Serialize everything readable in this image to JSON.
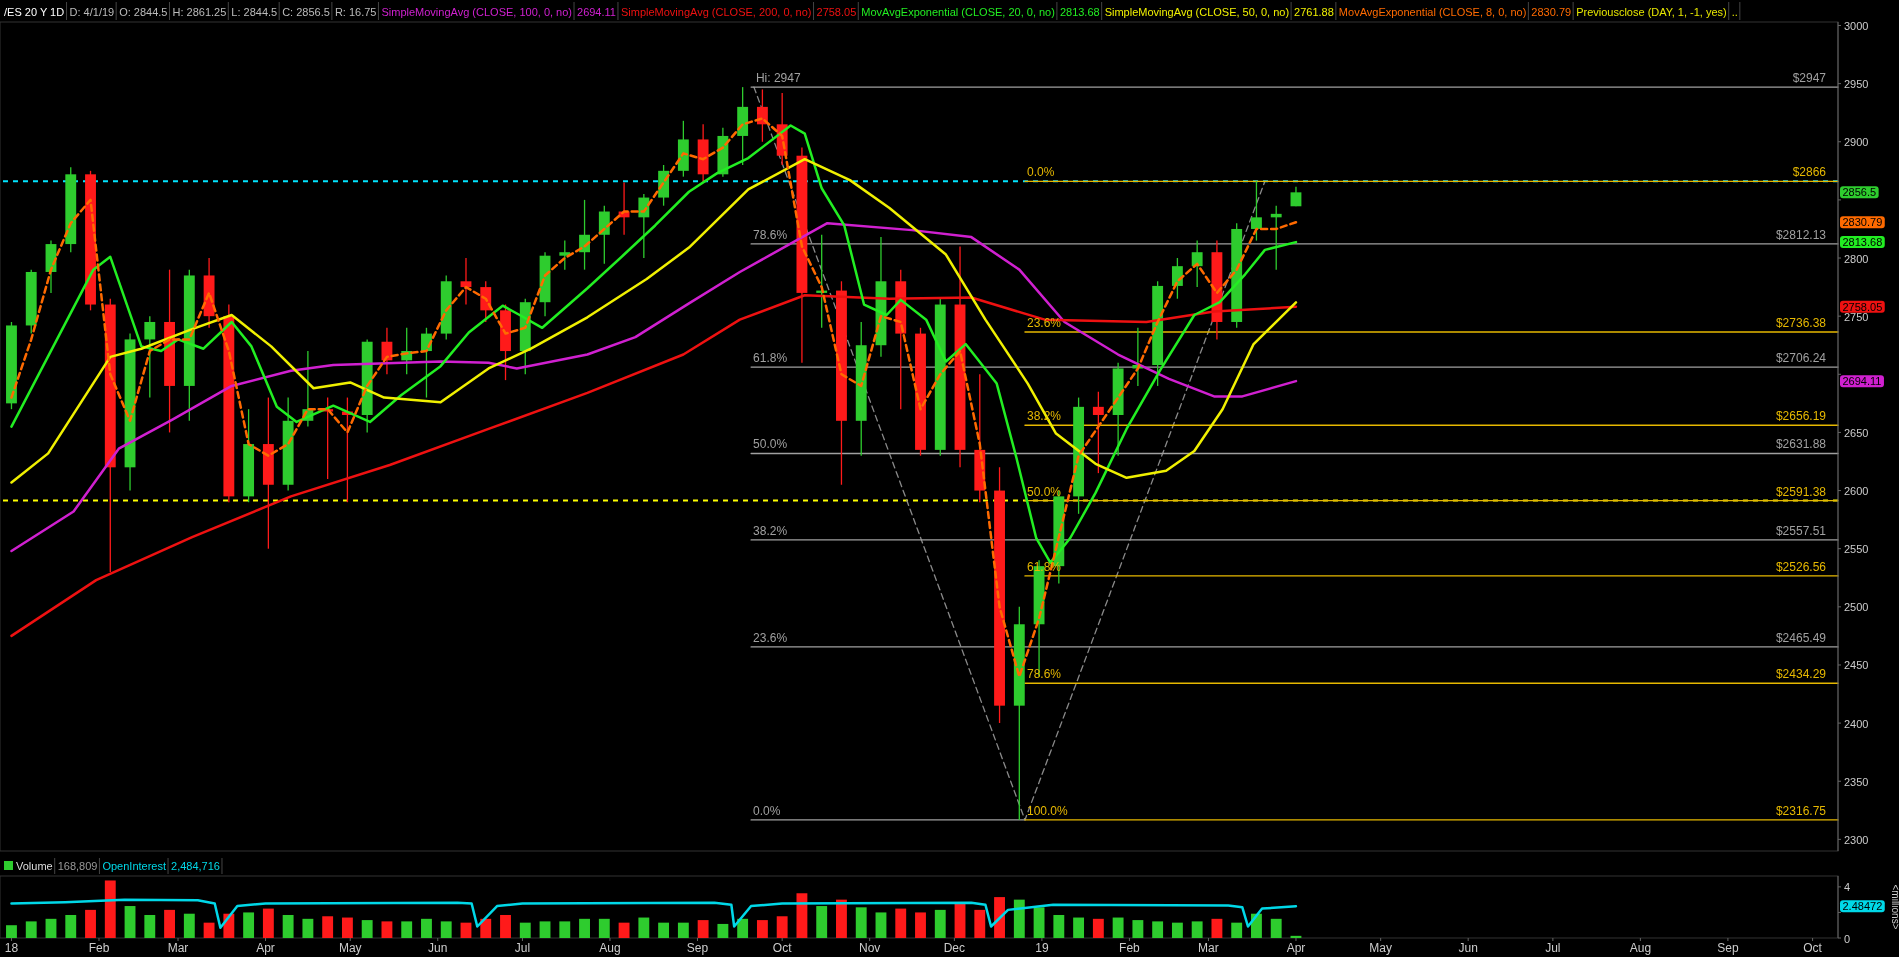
{
  "chart_data": [
    {
      "type": "candlestick",
      "title": "/ES 20 Y 1D",
      "subtitle": "D: 4/1/19  O: 2844.5  H: 2861.25  L: 2844.5  C: 2856.5  R: 16.75",
      "legend": "top",
      "tick_labels": "y",
      "x": [
        "2018-01-01",
        "2018-01-08",
        "2018-01-15",
        "2018-01-22",
        "2018-01-29",
        "2018-02-05",
        "2018-02-12",
        "2018-02-19",
        "2018-02-26",
        "2018-03-05",
        "2018-03-12",
        "2018-03-19",
        "2018-03-26",
        "2018-04-02",
        "2018-04-09",
        "2018-04-16",
        "2018-04-23",
        "2018-04-30",
        "2018-05-07",
        "2018-05-14",
        "2018-05-21",
        "2018-05-28",
        "2018-06-04",
        "2018-06-11",
        "2018-06-18",
        "2018-06-25",
        "2018-07-02",
        "2018-07-09",
        "2018-07-16",
        "2018-07-23",
        "2018-07-30",
        "2018-08-06",
        "2018-08-13",
        "2018-08-20",
        "2018-08-27",
        "2018-09-03",
        "2018-09-10",
        "2018-09-17",
        "2018-09-24",
        "2018-10-01",
        "2018-10-08",
        "2018-10-15",
        "2018-10-22",
        "2018-10-29",
        "2018-11-05",
        "2018-11-12",
        "2018-11-19",
        "2018-11-26",
        "2018-12-03",
        "2018-12-10",
        "2018-12-17",
        "2018-12-24",
        "2018-12-31",
        "2019-01-07",
        "2019-01-14",
        "2019-01-21",
        "2019-01-28",
        "2019-02-04",
        "2019-02-11",
        "2019-02-18",
        "2019-02-25",
        "2019-03-04",
        "2019-03-11",
        "2019-03-18",
        "2019-03-25",
        "2019-04-01"
      ],
      "ohlc": [
        [
          2675,
          2745,
          2670,
          2742
        ],
        [
          2742,
          2790,
          2735,
          2788
        ],
        [
          2788,
          2815,
          2770,
          2812
        ],
        [
          2812,
          2878,
          2805,
          2872
        ],
        [
          2872,
          2875,
          2755,
          2760
        ],
        [
          2760,
          2765,
          2530,
          2620
        ],
        [
          2620,
          2735,
          2600,
          2730
        ],
        [
          2730,
          2750,
          2680,
          2745
        ],
        [
          2745,
          2790,
          2650,
          2690
        ],
        [
          2690,
          2790,
          2660,
          2785
        ],
        [
          2785,
          2800,
          2740,
          2750
        ],
        [
          2750,
          2760,
          2590,
          2595
        ],
        [
          2595,
          2670,
          2590,
          2640
        ],
        [
          2640,
          2680,
          2550,
          2605
        ],
        [
          2605,
          2680,
          2600,
          2660
        ],
        [
          2660,
          2720,
          2655,
          2670
        ],
        [
          2670,
          2680,
          2610,
          2668
        ],
        [
          2668,
          2680,
          2590,
          2665
        ],
        [
          2665,
          2730,
          2650,
          2728
        ],
        [
          2728,
          2740,
          2700,
          2712
        ],
        [
          2712,
          2740,
          2700,
          2720
        ],
        [
          2720,
          2740,
          2680,
          2735
        ],
        [
          2735,
          2785,
          2730,
          2780
        ],
        [
          2780,
          2800,
          2760,
          2775
        ],
        [
          2775,
          2780,
          2745,
          2755
        ],
        [
          2755,
          2760,
          2695,
          2720
        ],
        [
          2720,
          2765,
          2700,
          2762
        ],
        [
          2762,
          2805,
          2750,
          2802
        ],
        [
          2802,
          2815,
          2790,
          2805
        ],
        [
          2805,
          2850,
          2790,
          2820
        ],
        [
          2820,
          2845,
          2795,
          2840
        ],
        [
          2840,
          2865,
          2820,
          2835
        ],
        [
          2835,
          2855,
          2800,
          2852
        ],
        [
          2852,
          2880,
          2845,
          2875
        ],
        [
          2875,
          2918,
          2870,
          2902
        ],
        [
          2902,
          2915,
          2865,
          2872
        ],
        [
          2872,
          2912,
          2870,
          2905
        ],
        [
          2905,
          2947,
          2880,
          2930
        ],
        [
          2930,
          2945,
          2900,
          2915
        ],
        [
          2915,
          2942,
          2880,
          2888
        ],
        [
          2888,
          2895,
          2710,
          2770
        ],
        [
          2770,
          2820,
          2740,
          2772
        ],
        [
          2772,
          2780,
          2605,
          2660
        ],
        [
          2660,
          2745,
          2630,
          2725
        ],
        [
          2725,
          2818,
          2715,
          2780
        ],
        [
          2780,
          2790,
          2670,
          2735
        ],
        [
          2735,
          2740,
          2630,
          2635
        ],
        [
          2635,
          2765,
          2630,
          2760
        ],
        [
          2760,
          2810,
          2620,
          2635
        ],
        [
          2635,
          2700,
          2590,
          2600
        ],
        [
          2600,
          2620,
          2400,
          2415
        ],
        [
          2415,
          2500,
          2316.75,
          2485
        ],
        [
          2485,
          2540,
          2440,
          2535
        ],
        [
          2535,
          2600,
          2520,
          2595
        ],
        [
          2595,
          2680,
          2580,
          2672
        ],
        [
          2672,
          2685,
          2615,
          2665
        ],
        [
          2665,
          2710,
          2630,
          2705
        ],
        [
          2705,
          2740,
          2690,
          2708
        ],
        [
          2708,
          2780,
          2690,
          2776
        ],
        [
          2776,
          2800,
          2765,
          2793
        ],
        [
          2793,
          2815,
          2775,
          2805
        ],
        [
          2805,
          2815,
          2730,
          2745
        ],
        [
          2745,
          2830,
          2740,
          2825
        ],
        [
          2825,
          2866,
          2815,
          2835
        ],
        [
          2835,
          2845,
          2790,
          2838
        ],
        [
          2844.5,
          2861.25,
          2844.5,
          2856.5
        ]
      ],
      "series": [
        {
          "name": "SimpleMovingAvg (CLOSE, 100, 0, no)",
          "type": "line",
          "color": "#d020d0",
          "x": [
            "2018-01-01",
            "2018-01-23",
            "2018-02-08",
            "2018-02-27",
            "2018-03-20",
            "2018-04-10",
            "2018-04-25",
            "2018-06-02",
            "2018-06-19",
            "2018-06-29",
            "2018-07-24",
            "2018-08-10",
            "2018-08-29",
            "2018-09-16",
            "2018-10-17",
            "2018-11-16",
            "2018-12-07",
            "2018-12-24",
            "2019-01-09",
            "2019-01-28",
            "2019-02-15",
            "2019-03-03",
            "2019-03-13",
            "2019-04-01"
          ],
          "values": [
            2548,
            2582,
            2636,
            2661,
            2690,
            2703,
            2708,
            2711,
            2710,
            2705,
            2717,
            2732,
            2761,
            2788,
            2830,
            2824,
            2818,
            2790,
            2745,
            2717,
            2696,
            2681,
            2681,
            2694.11
          ]
        },
        {
          "name": "SimpleMovingAvg (CLOSE, 200, 0, no)",
          "type": "line",
          "color": "#ee1111",
          "x": [
            "2018-01-01",
            "2018-01-31",
            "2018-03-06",
            "2018-04-10",
            "2018-05-15",
            "2018-06-19",
            "2018-07-24",
            "2018-08-27",
            "2018-09-16",
            "2018-10-09",
            "2018-11-08",
            "2018-12-07",
            "2019-01-02",
            "2019-02-07",
            "2019-03-03",
            "2019-04-01"
          ],
          "values": [
            2475,
            2523,
            2560,
            2595,
            2622,
            2653,
            2684,
            2717,
            2747,
            2768,
            2765,
            2766,
            2747,
            2745,
            2754,
            2758.05
          ]
        },
        {
          "name": "MovAvgExponential (CLOSE, 20, 0, no)",
          "type": "line",
          "color": "#22ee22",
          "x": [
            "2018-01-01",
            "2018-01-30",
            "2018-02-05",
            "2018-02-16",
            "2018-02-23",
            "2018-03-01",
            "2018-03-10",
            "2018-03-20",
            "2018-03-27",
            "2018-04-05",
            "2018-04-12",
            "2018-04-25",
            "2018-05-08",
            "2018-05-19",
            "2018-06-02",
            "2018-06-12",
            "2018-06-24",
            "2018-06-30",
            "2018-07-08",
            "2018-07-24",
            "2018-08-06",
            "2018-08-17",
            "2018-08-29",
            "2018-09-08",
            "2018-09-19",
            "2018-10-04",
            "2018-10-09",
            "2018-10-15",
            "2018-10-23",
            "2018-10-30",
            "2018-11-07",
            "2018-11-12",
            "2018-11-21",
            "2018-11-28",
            "2018-12-05",
            "2018-12-16",
            "2018-12-23",
            "2018-12-30",
            "2019-01-04",
            "2019-01-11",
            "2019-01-20",
            "2019-01-31",
            "2019-02-12",
            "2019-02-24",
            "2019-03-05",
            "2019-03-14",
            "2019-03-21",
            "2019-04-01"
          ],
          "values": [
            2655,
            2790,
            2801,
            2724,
            2720,
            2730,
            2722,
            2745,
            2724,
            2672,
            2659,
            2673,
            2659,
            2682,
            2707,
            2736,
            2759,
            2751,
            2740,
            2774,
            2803,
            2828,
            2857,
            2873,
            2886,
            2914,
            2907,
            2860,
            2828,
            2760,
            2751,
            2764,
            2747,
            2711,
            2726,
            2692,
            2628,
            2559,
            2538,
            2559,
            2598,
            2653,
            2704,
            2751,
            2762,
            2786,
            2807,
            2813.68
          ]
        },
        {
          "name": "SimpleMovingAvg (CLOSE, 50, 0, no)",
          "type": "line",
          "color": "#f0f000",
          "x": [
            "2018-01-01",
            "2018-01-14",
            "2018-02-05",
            "2018-02-16",
            "2018-03-05",
            "2018-03-20",
            "2018-04-03",
            "2018-04-18",
            "2018-05-01",
            "2018-05-13",
            "2018-06-02",
            "2018-06-19",
            "2018-07-04",
            "2018-07-24",
            "2018-08-14",
            "2018-08-29",
            "2018-09-19",
            "2018-10-09",
            "2018-10-25",
            "2018-11-08",
            "2018-11-28",
            "2018-12-12",
            "2018-12-27",
            "2019-01-06",
            "2019-01-20",
            "2019-01-31",
            "2019-02-14",
            "2019-02-24",
            "2019-03-06",
            "2019-03-17",
            "2019-04-01"
          ],
          "values": [
            2607,
            2632,
            2715,
            2722,
            2738,
            2751,
            2724,
            2688,
            2693,
            2680,
            2676,
            2705,
            2722,
            2749,
            2782,
            2809,
            2859,
            2885,
            2867,
            2843,
            2803,
            2747,
            2692,
            2649,
            2623,
            2611,
            2617,
            2634,
            2670,
            2726,
            2761.88
          ]
        },
        {
          "name": "MovAvgExponential (CLOSE, 8, 0, no)",
          "type": "line",
          "color": "#ff6a00",
          "line_style": "dashed",
          "x": [
            "2018-01-01",
            "2018-01-08",
            "2018-01-15",
            "2018-01-22",
            "2018-01-29",
            "2018-02-05",
            "2018-02-12",
            "2018-02-19",
            "2018-02-26",
            "2018-03-05",
            "2018-03-12",
            "2018-03-19",
            "2018-03-26",
            "2018-04-02",
            "2018-04-09",
            "2018-04-16",
            "2018-04-23",
            "2018-04-30",
            "2018-05-07",
            "2018-05-14",
            "2018-05-21",
            "2018-05-28",
            "2018-06-04",
            "2018-06-11",
            "2018-06-18",
            "2018-06-25",
            "2018-07-02",
            "2018-07-09",
            "2018-07-16",
            "2018-07-23",
            "2018-07-30",
            "2018-08-06",
            "2018-08-13",
            "2018-08-20",
            "2018-08-27",
            "2018-09-03",
            "2018-09-10",
            "2018-09-17",
            "2018-09-24",
            "2018-10-01",
            "2018-10-08",
            "2018-10-15",
            "2018-10-22",
            "2018-10-29",
            "2018-11-05",
            "2018-11-12",
            "2018-11-19",
            "2018-11-26",
            "2018-12-03",
            "2018-12-10",
            "2018-12-17",
            "2018-12-24",
            "2018-12-31",
            "2019-01-07",
            "2019-01-14",
            "2019-01-21",
            "2019-01-28",
            "2019-02-04",
            "2019-02-11",
            "2019-02-18",
            "2019-02-25",
            "2019-03-04",
            "2019-03-11",
            "2019-03-18",
            "2019-03-25",
            "2019-04-01"
          ],
          "values": [
            2680,
            2730,
            2790,
            2830,
            2850,
            2700,
            2660,
            2720,
            2730,
            2730,
            2770,
            2720,
            2640,
            2630,
            2640,
            2670,
            2670,
            2650,
            2690,
            2715,
            2718,
            2720,
            2755,
            2775,
            2765,
            2735,
            2740,
            2785,
            2800,
            2810,
            2825,
            2840,
            2840,
            2865,
            2890,
            2885,
            2895,
            2915,
            2920,
            2905,
            2810,
            2775,
            2700,
            2690,
            2750,
            2745,
            2670,
            2700,
            2720,
            2640,
            2500,
            2440,
            2490,
            2560,
            2630,
            2655,
            2680,
            2705,
            2745,
            2780,
            2795,
            2770,
            2790,
            2825,
            2825,
            2830.79
          ]
        },
        {
          "type": "line",
          "color": "#8a8a8a",
          "line_style": "dashed",
          "x": [
            "2018-09-21",
            "2018-12-26",
            "2019-03-21"
          ],
          "values": [
            2947,
            2316.75,
            2866
          ]
        },
        {
          "type": "line",
          "color": "#a0a0a0",
          "x": [
            "2018-09-20",
            "2019-10-10"
          ],
          "values": [
            2947,
            2947
          ]
        },
        {
          "type": "line",
          "color": "#a0a0a0",
          "x": [
            "2018-09-20",
            "2019-10-10"
          ],
          "values": [
            2812.13,
            2812.13
          ]
        },
        {
          "type": "line",
          "color": "#a0a0a0",
          "x": [
            "2018-09-20",
            "2019-10-10"
          ],
          "values": [
            2706.24,
            2706.24
          ]
        },
        {
          "type": "line",
          "color": "#a0a0a0",
          "x": [
            "2018-09-20",
            "2019-10-10"
          ],
          "values": [
            2631.88,
            2631.88
          ]
        },
        {
          "type": "line",
          "color": "#a0a0a0",
          "x": [
            "2018-09-20",
            "2019-10-10"
          ],
          "values": [
            2557.51,
            2557.51
          ]
        },
        {
          "type": "line",
          "color": "#a0a0a0",
          "x": [
            "2018-09-20",
            "2019-10-10"
          ],
          "values": [
            2465.49,
            2465.49
          ]
        },
        {
          "type": "line",
          "color": "#a0a0a0",
          "x": [
            "2018-09-20",
            "2018-12-26"
          ],
          "values": [
            2316.75,
            2316.75
          ]
        },
        {
          "type": "line",
          "color": "#e6b800",
          "x": [
            "2018-12-26",
            "2019-10-10"
          ],
          "values": [
            2866,
            2866
          ]
        },
        {
          "type": "line",
          "color": "#e6b800",
          "x": [
            "2018-12-26",
            "2019-10-10"
          ],
          "values": [
            2736.38,
            2736.38
          ]
        },
        {
          "type": "line",
          "color": "#e6b800",
          "x": [
            "2018-12-26",
            "2019-10-10"
          ],
          "values": [
            2656.19,
            2656.19
          ]
        },
        {
          "type": "line",
          "color": "#e6b800",
          "x": [
            "2018-12-26",
            "2019-10-10"
          ],
          "values": [
            2591.38,
            2591.38
          ]
        },
        {
          "type": "line",
          "color": "#e6b800",
          "x": [
            "2018-12-26",
            "2019-10-10"
          ],
          "values": [
            2526.56,
            2526.56
          ]
        },
        {
          "type": "line",
          "color": "#e6b800",
          "x": [
            "2018-12-26",
            "2019-10-10"
          ],
          "values": [
            2434.29,
            2434.29
          ]
        },
        {
          "type": "line",
          "color": "#e6b800",
          "x": [
            "2018-12-26",
            "2019-10-10"
          ],
          "values": [
            2316.75,
            2316.75
          ]
        }
      ],
      "ref_lines": [
        {
          "axis": "y",
          "value": 2866,
          "color": "#00e5ff",
          "line_style": "dashed"
        },
        {
          "axis": "y",
          "value": 2591.38,
          "color": "#ffff00",
          "line_style": "dashed"
        }
      ],
      "annotations": [
        {
          "text": "Hi: 2947",
          "x": "2018-09-21",
          "y": 2947
        },
        {
          "text": "78.6%",
          "x": "2018-09-20",
          "y": 2812.13
        },
        {
          "text": "61.8%",
          "x": "2018-09-20",
          "y": 2706.24
        },
        {
          "text": "50.0%",
          "x": "2018-09-20",
          "y": 2631.88
        },
        {
          "text": "38.2%",
          "x": "2018-09-20",
          "y": 2557.51
        },
        {
          "text": "23.6%",
          "x": "2018-09-20",
          "y": 2465.49
        },
        {
          "text": "0.0%",
          "x": "2018-09-20",
          "y": 2316.75
        },
        {
          "text": "0.0%",
          "x": "2018-12-26",
          "y": 2866
        },
        {
          "text": "23.6%",
          "x": "2018-12-26",
          "y": 2736.38
        },
        {
          "text": "38.2%",
          "x": "2018-12-26",
          "y": 2656.19
        },
        {
          "text": "50.0%",
          "x": "2018-12-26",
          "y": 2591.38
        },
        {
          "text": "61.8%",
          "x": "2018-12-26",
          "y": 2526.56
        },
        {
          "text": "78.6%",
          "x": "2018-12-26",
          "y": 2434.29
        },
        {
          "text": "100.0%",
          "x": "2018-12-26",
          "y": 2316.75
        },
        {
          "text": "$2947",
          "x": "2019-10-10",
          "y": 2947
        },
        {
          "text": "$2866",
          "x": "2019-10-10",
          "y": 2866
        },
        {
          "text": "$2812.13",
          "x": "2019-10-10",
          "y": 2812.13
        },
        {
          "text": "$2736.38",
          "x": "2019-10-10",
          "y": 2736.38
        },
        {
          "text": "$2706.24",
          "x": "2019-10-10",
          "y": 2706.24
        },
        {
          "text": "$2656.19",
          "x": "2019-10-10",
          "y": 2656.19
        },
        {
          "text": "$2631.88",
          "x": "2019-10-10",
          "y": 2631.88
        },
        {
          "text": "$2591.38",
          "x": "2019-10-10",
          "y": 2591.38
        },
        {
          "text": "$2557.51",
          "x": "2019-10-10",
          "y": 2557.51
        },
        {
          "text": "$2526.56",
          "x": "2019-10-10",
          "y": 2526.56
        },
        {
          "text": "$2465.49",
          "x": "2019-10-10",
          "y": 2465.49
        },
        {
          "text": "$2434.29",
          "x": "2019-10-10",
          "y": 2434.29
        },
        {
          "text": "$2316.75",
          "x": "2019-10-10",
          "y": 2316.75
        },
        "2694.11",
        "2758.05",
        "2813.68",
        "2761.88",
        "2830.79",
        "Previousclose (DAY, 1, -1, yes)",
        "..",
        "2856.5",
        "2830.79",
        "2813.68",
        "2758.05",
        "2694.11"
      ],
      "xlim": [
        "2017-12-29",
        "2019-10-10"
      ],
      "ylim": [
        2290,
        3003
      ],
      "yticks": [
        2300,
        2350,
        2400,
        2450,
        2500,
        2550,
        2600,
        2650,
        {
          "value": 2700,
          "label": null
        },
        2750,
        2800,
        {
          "value": 2850,
          "label": null
        },
        2900,
        2950,
        3000
      ]
    },
    {
      "type": "bar",
      "legend": "top",
      "ylabel": "<millions>",
      "annotations": [
        "168,809",
        "2,484,716",
        "2.48472"
      ],
      "x": [
        "2018-01-01",
        "2018-01-08",
        "2018-01-15",
        "2018-01-22",
        "2018-01-29",
        "2018-02-05",
        "2018-02-12",
        "2018-02-19",
        "2018-02-26",
        "2018-03-05",
        "2018-03-12",
        "2018-03-19",
        "2018-03-26",
        "2018-04-02",
        "2018-04-09",
        "2018-04-16",
        "2018-04-23",
        "2018-04-30",
        "2018-05-07",
        "2018-05-14",
        "2018-05-21",
        "2018-05-28",
        "2018-06-04",
        "2018-06-11",
        "2018-06-18",
        "2018-06-25",
        "2018-07-02",
        "2018-07-09",
        "2018-07-16",
        "2018-07-23",
        "2018-07-30",
        "2018-08-06",
        "2018-08-13",
        "2018-08-20",
        "2018-08-27",
        "2018-09-03",
        "2018-09-10",
        "2018-09-17",
        "2018-09-24",
        "2018-10-01",
        "2018-10-08",
        "2018-10-15",
        "2018-10-22",
        "2018-10-29",
        "2018-11-05",
        "2018-11-12",
        "2018-11-19",
        "2018-11-26",
        "2018-12-03",
        "2018-12-10",
        "2018-12-17",
        "2018-12-24",
        "2018-12-31",
        "2019-01-07",
        "2019-01-14",
        "2019-01-21",
        "2019-01-28",
        "2019-02-04",
        "2019-02-11",
        "2019-02-18",
        "2019-02-25",
        "2019-03-04",
        "2019-03-11",
        "2019-03-18",
        "2019-03-25",
        "2019-04-01"
      ],
      "series": [
        {
          "name": "Volume",
          "type": "bar",
          "values": [
            1.0,
            1.3,
            1.5,
            1.8,
            2.2,
            4.5,
            2.5,
            1.8,
            2.2,
            1.9,
            1.2,
            1.9,
            2.0,
            2.3,
            1.8,
            1.5,
            1.7,
            1.6,
            1.4,
            1.3,
            1.3,
            1.5,
            1.3,
            1.2,
            1.5,
            1.8,
            1.2,
            1.3,
            1.3,
            1.5,
            1.5,
            1.2,
            1.6,
            1.2,
            1.2,
            1.4,
            1.1,
            1.5,
            1.4,
            1.7,
            3.5,
            2.5,
            3.0,
            2.4,
            2.0,
            2.3,
            2.0,
            2.2,
            2.8,
            2.2,
            3.2,
            3.0,
            2.4,
            1.8,
            1.6,
            1.5,
            1.6,
            1.4,
            1.3,
            1.2,
            1.3,
            1.5,
            1.2,
            1.9,
            1.5,
            0.168809
          ],
          "colors": [
            "#2ecc2e",
            "#2ecc2e",
            "#2ecc2e",
            "#2ecc2e",
            "#ff1a1a",
            "#ff1a1a",
            "#2ecc2e",
            "#2ecc2e",
            "#ff1a1a",
            "#2ecc2e",
            "#ff1a1a",
            "#ff1a1a",
            "#2ecc2e",
            "#ff1a1a",
            "#2ecc2e",
            "#2ecc2e",
            "#ff1a1a",
            "#ff1a1a",
            "#2ecc2e",
            "#ff1a1a",
            "#2ecc2e",
            "#2ecc2e",
            "#2ecc2e",
            "#ff1a1a",
            "#ff1a1a",
            "#ff1a1a",
            "#2ecc2e",
            "#2ecc2e",
            "#2ecc2e",
            "#2ecc2e",
            "#2ecc2e",
            "#ff1a1a",
            "#2ecc2e",
            "#2ecc2e",
            "#2ecc2e",
            "#ff1a1a",
            "#2ecc2e",
            "#2ecc2e",
            "#ff1a1a",
            "#ff1a1a",
            "#ff1a1a",
            "#2ecc2e",
            "#ff1a1a",
            "#2ecc2e",
            "#2ecc2e",
            "#ff1a1a",
            "#ff1a1a",
            "#2ecc2e",
            "#ff1a1a",
            "#ff1a1a",
            "#ff1a1a",
            "#2ecc2e",
            "#2ecc2e",
            "#2ecc2e",
            "#2ecc2e",
            "#ff1a1a",
            "#2ecc2e",
            "#2ecc2e",
            "#2ecc2e",
            "#2ecc2e",
            "#2ecc2e",
            "#ff1a1a",
            "#2ecc2e",
            "#2ecc2e",
            "#2ecc2e",
            "#2ecc2e"
          ]
        },
        {
          "name": "OpenInterest",
          "type": "line",
          "color": "#00d8e8",
          "x": [
            "2018-01-01",
            "2018-01-20",
            "2018-02-10",
            "2018-03-08",
            "2018-03-14",
            "2018-03-16",
            "2018-03-22",
            "2018-04-01",
            "2018-06-08",
            "2018-06-13",
            "2018-06-15",
            "2018-06-22",
            "2018-07-01",
            "2018-09-07",
            "2018-09-13",
            "2018-09-14",
            "2018-09-20",
            "2018-10-01",
            "2018-12-07",
            "2018-12-12",
            "2018-12-14",
            "2018-12-20",
            "2019-01-05",
            "2019-03-08",
            "2019-03-13",
            "2019-03-15",
            "2019-03-20",
            "2019-04-01"
          ],
          "values": [
            2.7,
            2.8,
            3.0,
            2.95,
            2.7,
            0.8,
            2.5,
            2.7,
            2.75,
            2.7,
            0.9,
            2.5,
            2.7,
            2.75,
            2.6,
            0.9,
            2.5,
            2.7,
            2.75,
            2.6,
            0.9,
            2.2,
            2.6,
            2.55,
            2.4,
            0.9,
            2.3,
            2.48472
          ]
        }
      ],
      "xlim": [
        "2017-12-29",
        "2019-10-10"
      ],
      "xticks": [
        {
          "value": "2018-01-01",
          "label": "18"
        },
        {
          "value": "2018-02-01",
          "label": "Feb"
        },
        {
          "value": "2018-03-01",
          "label": "Mar"
        },
        {
          "value": "2018-04-01",
          "label": "Apr"
        },
        {
          "value": "2018-05-01",
          "label": "May"
        },
        {
          "value": "2018-06-01",
          "label": "Jun"
        },
        {
          "value": "2018-07-01",
          "label": "Jul"
        },
        {
          "value": "2018-08-01",
          "label": "Aug"
        },
        {
          "value": "2018-09-01",
          "label": "Sep"
        },
        {
          "value": "2018-10-01",
          "label": "Oct"
        },
        {
          "value": "2018-11-01",
          "label": "Nov"
        },
        {
          "value": "2018-12-01",
          "label": "Dec"
        },
        {
          "value": "2019-01-01",
          "label": "19"
        },
        {
          "value": "2019-02-01",
          "label": "Feb"
        },
        {
          "value": "2019-03-01",
          "label": "Mar"
        },
        {
          "value": "2019-04-01",
          "label": "Apr"
        },
        {
          "value": "2019-05-01",
          "label": "May"
        },
        {
          "value": "2019-06-01",
          "label": "Jun"
        },
        {
          "value": "2019-07-01",
          "label": "Jul"
        },
        {
          "value": "2019-08-01",
          "label": "Aug"
        },
        {
          "value": "2019-09-01",
          "label": "Sep"
        },
        {
          "value": "2019-10-01",
          "label": "Oct"
        }
      ],
      "ylim": [
        0,
        4.85
      ],
      "yticks": [
        0,
        {
          "value": 2,
          "label": null
        },
        4
      ]
    }
  ]
}
